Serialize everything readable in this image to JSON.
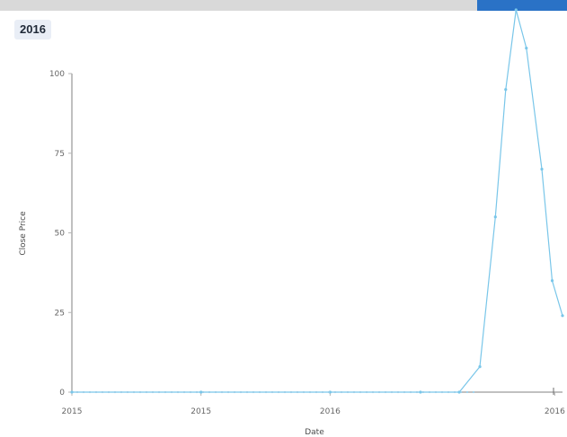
{
  "window": {
    "title": "",
    "topbar_color": "#d9d9d9",
    "accent_color": "#2a72c6"
  },
  "header": {
    "year": "2016"
  },
  "chart_data": {
    "type": "line",
    "title": "",
    "xlabel": "Date",
    "ylabel": "Close Price",
    "x": [
      2015.0,
      2015.5,
      2016.0,
      2016.35,
      2016.5,
      2016.58,
      2016.64,
      2016.68,
      2016.72,
      2016.76,
      2016.82,
      2016.86,
      2016.9
    ],
    "series": [
      {
        "values": [
          0,
          0,
          0,
          0,
          0,
          8,
          55,
          95,
          120,
          108,
          70,
          35,
          24
        ]
      }
    ],
    "x_tick_labels": [
      "2015",
      "2015",
      "2016",
      "2016"
    ],
    "y_tick_labels": [
      "0",
      "25",
      "50",
      "75",
      "100"
    ],
    "xlim": [
      2015.0,
      2016.9
    ],
    "ylim": [
      0,
      100
    ],
    "grid": false,
    "legend": "none"
  }
}
